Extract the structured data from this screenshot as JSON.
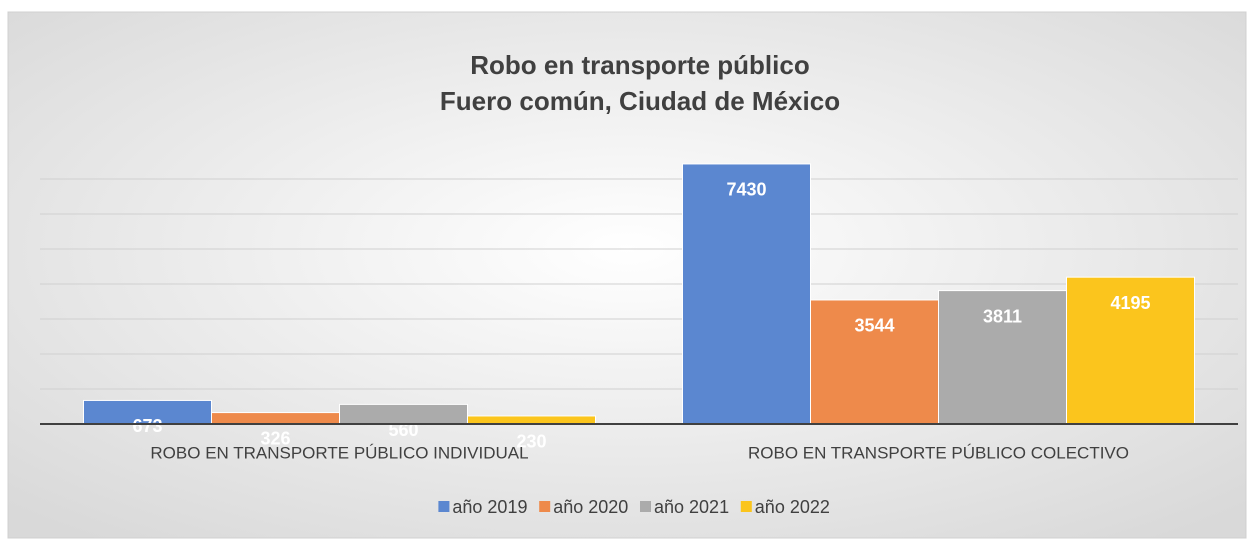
{
  "chart_data": {
    "type": "bar",
    "title": "Robo en transporte público",
    "subtitle": "Fuero común, Ciudad de México",
    "categories": [
      "ROBO EN TRANSPORTE PÚBLICO INDIVIDUAL",
      "ROBO EN TRANSPORTE PÚBLICO COLECTIVO"
    ],
    "series": [
      {
        "name": "año 2019",
        "color": "#5b87d0",
        "values": [
          673,
          7430
        ]
      },
      {
        "name": "año 2020",
        "color": "#ee8a4b",
        "values": [
          326,
          3544
        ]
      },
      {
        "name": "año 2021",
        "color": "#ababab",
        "values": [
          560,
          3811
        ]
      },
      {
        "name": "año 2022",
        "color": "#fbc51d",
        "values": [
          230,
          4195
        ]
      }
    ],
    "ylim": [
      0,
      8000
    ],
    "yticks": [
      0,
      1000,
      2000,
      3000,
      4000,
      5000,
      6000,
      7000
    ],
    "grid": true,
    "legend": "bottom"
  }
}
